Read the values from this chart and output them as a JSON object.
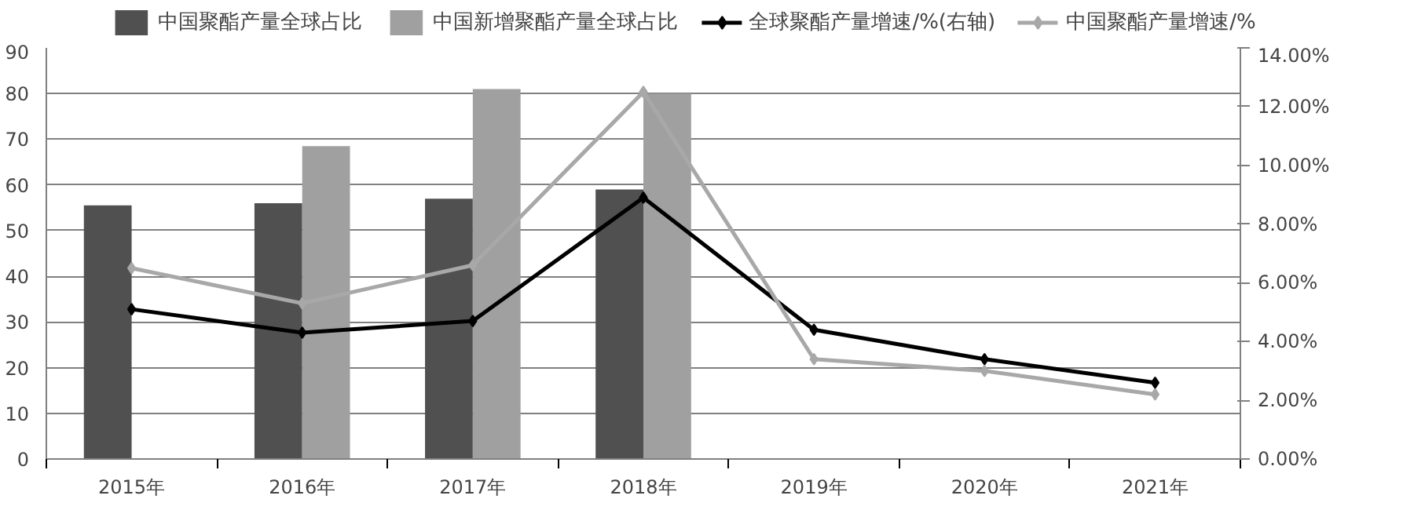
{
  "chart_data": {
    "type": "bar",
    "categories": [
      "2015年",
      "2016年",
      "2017年",
      "2018年",
      "2019年",
      "2020年",
      "2021年"
    ],
    "series": [
      {
        "name": "中国聚酯产量全球占比",
        "color": "#505050",
        "values": [
          55.5,
          56,
          57,
          59,
          null,
          null,
          null
        ]
      },
      {
        "name": "中国新增聚酯产量全球占比",
        "color": "#a0a0a0",
        "values": [
          null,
          68.5,
          81,
          80,
          null,
          null,
          null
        ]
      },
      {
        "name": "全球聚酯产量增速/%(右轴)",
        "type": "line",
        "axis": "y2",
        "color": "#000000",
        "marker": "diamond",
        "values": [
          5.1,
          4.3,
          4.7,
          8.9,
          4.4,
          3.4,
          2.6
        ]
      },
      {
        "name": "中国聚酯产量增速/%",
        "type": "line",
        "axis": "y2",
        "color": "#a8a8a8",
        "marker": "diamond",
        "values": [
          6.5,
          5.3,
          6.6,
          12.5,
          3.4,
          3.0,
          2.2
        ]
      }
    ],
    "ylim": [
      0,
      90
    ],
    "yticks": [
      0,
      10,
      20,
      30,
      40,
      50,
      60,
      70,
      80,
      90
    ],
    "y2lim": [
      0,
      14
    ],
    "y2ticks": [
      {
        "value": 0,
        "label": "0.00%"
      },
      {
        "value": 2,
        "label": "2.00%"
      },
      {
        "value": 4,
        "label": "4.00%"
      },
      {
        "value": 6,
        "label": "6.00%"
      },
      {
        "value": 8,
        "label": "8.00%"
      },
      {
        "value": 10,
        "label": "10.00%"
      },
      {
        "value": 12,
        "label": "12.00%"
      },
      {
        "value": 14,
        "label": "14.00%"
      }
    ],
    "grid": "y",
    "legend": "top"
  }
}
